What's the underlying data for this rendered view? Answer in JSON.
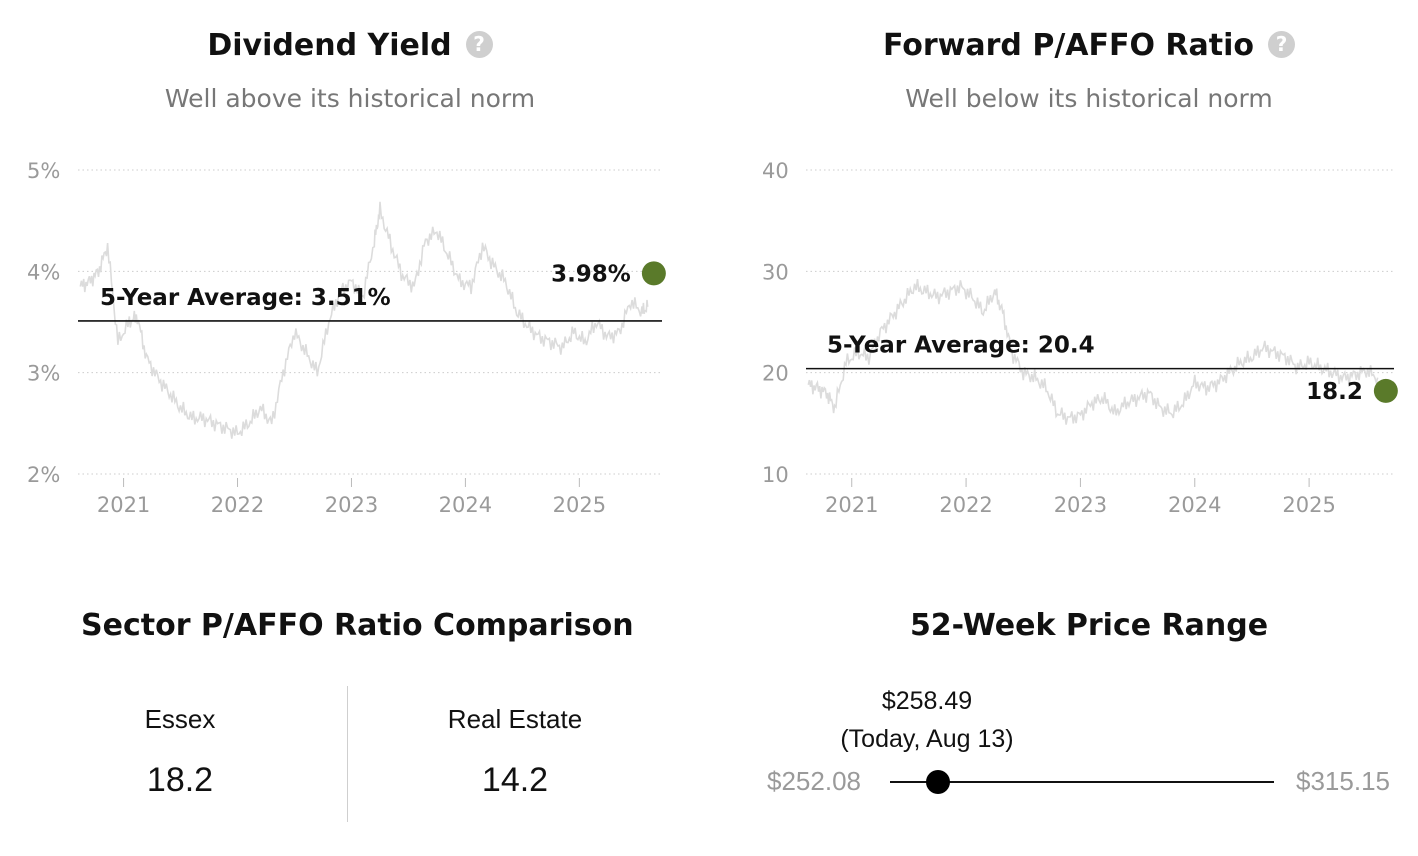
{
  "colors": {
    "accent": "#5a7a2a",
    "history_line": "#dcdcdc",
    "grid": "#cccccc"
  },
  "dividend_yield": {
    "title": "Dividend Yield",
    "subtitle": "Well above its historical norm",
    "help_icon": "question-icon",
    "avg_label": "5-Year Average: 3.51%",
    "current_label": "3.98%",
    "y_ticks": [
      "5%",
      "4%",
      "3%",
      "2%"
    ],
    "x_ticks": [
      "2021",
      "2022",
      "2023",
      "2024",
      "2025"
    ]
  },
  "pafo": {
    "title": "Forward P/AFFO Ratio",
    "subtitle": "Well below its historical norm",
    "help_icon": "question-icon",
    "avg_label": "5-Year Average: 20.4",
    "current_label": "18.2",
    "y_ticks": [
      "40",
      "30",
      "20",
      "10"
    ],
    "x_ticks": [
      "2021",
      "2022",
      "2023",
      "2024",
      "2025"
    ]
  },
  "chart_data": [
    {
      "type": "line",
      "title": "Dividend Yield",
      "subtitle": "Well above its historical norm",
      "ylim": [
        2,
        5
      ],
      "xlim": [
        2020.6,
        2025.62
      ],
      "y_unit": "%",
      "average": 3.51,
      "current": {
        "x": 2025.61,
        "y": 3.98
      },
      "series": [
        {
          "x": [
            2020.62,
            2020.7,
            2020.78,
            2020.86,
            2020.95,
            2021.05,
            2021.12,
            2021.2,
            2021.3,
            2021.4,
            2021.5,
            2021.6,
            2021.7,
            2021.8,
            2021.9,
            2022.0,
            2022.1,
            2022.2,
            2022.3,
            2022.4,
            2022.5,
            2022.6,
            2022.7,
            2022.8,
            2022.9,
            2023.0,
            2023.1,
            2023.2,
            2023.25,
            2023.35,
            2023.45,
            2023.55,
            2023.65,
            2023.75,
            2023.85,
            2023.95,
            2024.05,
            2024.15,
            2024.25,
            2024.35,
            2024.45,
            2024.55,
            2024.65,
            2024.75,
            2024.85,
            2024.95,
            2025.05,
            2025.15,
            2025.25,
            2025.35,
            2025.45,
            2025.55,
            2025.6
          ],
          "y": [
            3.85,
            3.9,
            4.0,
            4.25,
            3.3,
            3.5,
            3.55,
            3.15,
            2.95,
            2.8,
            2.65,
            2.55,
            2.55,
            2.5,
            2.45,
            2.4,
            2.5,
            2.65,
            2.5,
            3.0,
            3.4,
            3.2,
            3.0,
            3.5,
            3.8,
            3.9,
            3.75,
            4.3,
            4.6,
            4.25,
            3.95,
            3.85,
            4.3,
            4.4,
            4.15,
            3.9,
            3.85,
            4.25,
            4.05,
            3.9,
            3.6,
            3.45,
            3.35,
            3.3,
            3.25,
            3.4,
            3.3,
            3.5,
            3.35,
            3.4,
            3.7,
            3.6,
            3.65
          ]
        }
      ],
      "x_ticks": [
        "2021",
        "2022",
        "2023",
        "2024",
        "2025"
      ],
      "y_ticks": [
        "5%",
        "4%",
        "3%",
        "2%"
      ]
    },
    {
      "type": "line",
      "title": "Forward P/AFFO Ratio",
      "subtitle": "Well below its historical norm",
      "ylim": [
        10,
        40
      ],
      "xlim": [
        2020.6,
        2025.62
      ],
      "average": 20.4,
      "current": {
        "x": 2025.61,
        "y": 18.2
      },
      "series": [
        {
          "x": [
            2020.62,
            2020.7,
            2020.78,
            2020.85,
            2020.95,
            2021.05,
            2021.15,
            2021.25,
            2021.35,
            2021.45,
            2021.55,
            2021.65,
            2021.75,
            2021.85,
            2021.95,
            2022.05,
            2022.15,
            2022.25,
            2022.32,
            2022.4,
            2022.5,
            2022.6,
            2022.7,
            2022.8,
            2022.9,
            2023.0,
            2023.1,
            2023.2,
            2023.3,
            2023.4,
            2023.5,
            2023.6,
            2023.7,
            2023.8,
            2023.9,
            2024.0,
            2024.1,
            2024.2,
            2024.3,
            2024.4,
            2024.5,
            2024.6,
            2024.7,
            2024.8,
            2024.9,
            2025.0,
            2025.1,
            2025.2,
            2025.3,
            2025.4,
            2025.5,
            2025.6
          ],
          "y": [
            18.8,
            18.5,
            18.0,
            16.5,
            21.0,
            22.0,
            21.5,
            24.0,
            25.5,
            27.0,
            28.5,
            28.0,
            27.5,
            28.0,
            28.5,
            27.5,
            26.0,
            28.0,
            26.0,
            22.0,
            20.0,
            19.5,
            18.5,
            16.0,
            15.5,
            15.8,
            17.0,
            17.5,
            16.0,
            17.0,
            17.5,
            18.0,
            16.5,
            16.0,
            17.0,
            19.0,
            18.5,
            19.0,
            20.0,
            21.0,
            21.5,
            22.5,
            22.0,
            21.5,
            20.5,
            21.0,
            20.5,
            20.0,
            19.5,
            19.8,
            20.2,
            19.5
          ]
        }
      ],
      "x_ticks": [
        "2021",
        "2022",
        "2023",
        "2024",
        "2025"
      ],
      "y_ticks": [
        "40",
        "30",
        "20",
        "10"
      ]
    },
    {
      "type": "table",
      "title": "Sector P/AFFO Ratio Comparison",
      "columns": [
        "Essex",
        "Real Estate"
      ],
      "values": [
        18.2,
        14.2
      ]
    }
  ],
  "sector": {
    "title": "Sector P/AFFO Ratio Comparison",
    "left_name": "Essex",
    "left_value": "18.2",
    "right_name": "Real Estate",
    "right_value": "14.2"
  },
  "price_range": {
    "title": "52-Week Price Range",
    "low": "$252.08",
    "high": "$315.15",
    "current_price": "$258.49",
    "current_note": "(Today, Aug 13)",
    "low_value": 252.08,
    "high_value": 315.15,
    "current_value": 258.49
  }
}
